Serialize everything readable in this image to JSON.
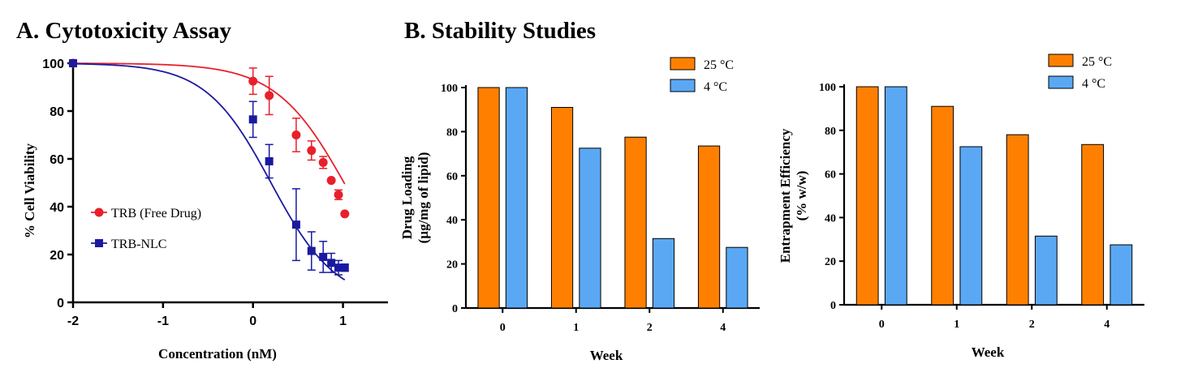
{
  "figure": {
    "panel_a_title": "A. Cytotoxicity Assay",
    "panel_b_title": "B. Stability Studies"
  },
  "chart_data": [
    {
      "type": "scatter",
      "title": "A. Cytotoxicity Assay",
      "xlabel": "Concentration (nM)",
      "ylabel": "% Cell Viability",
      "xlim": [
        -2,
        1.5
      ],
      "ylim": [
        0,
        100
      ],
      "xticks": [
        "-2",
        "-1",
        "0",
        "1"
      ],
      "xtick_values": [
        -2,
        -1,
        0,
        1
      ],
      "yticks": [
        "0",
        "20",
        "40",
        "60",
        "80",
        "100"
      ],
      "ytick_values": [
        0,
        20,
        40,
        60,
        80,
        100
      ],
      "legend_position": "middle-left",
      "series": [
        {
          "name": "TRB (Free Drug)",
          "color": "#e8202a",
          "marker": "circle",
          "x": [
            -2,
            0,
            0.18,
            0.48,
            0.65,
            0.78,
            0.87,
            0.95,
            1.02
          ],
          "y": [
            100,
            92.5,
            86.5,
            70,
            63.5,
            58.5,
            51,
            45,
            37
          ],
          "error": [
            0,
            5.5,
            8,
            7,
            4,
            2.5,
            0,
            2,
            0
          ],
          "fit": {
            "top": 100,
            "bottom": -5,
            "logEC50": 1.05,
            "hill": 1.1
          }
        },
        {
          "name": "TRB-NLC",
          "color": "#1a1aa0",
          "marker": "square",
          "x": [
            -2,
            0,
            0.18,
            0.48,
            0.65,
            0.78,
            0.87,
            0.95,
            1.02
          ],
          "y": [
            100,
            76.5,
            59,
            32.5,
            21.5,
            19,
            16.5,
            14.5,
            14.5
          ],
          "error": [
            0,
            7.5,
            7,
            15,
            8,
            6.5,
            4,
            3,
            1.5
          ],
          "fit": {
            "top": 100,
            "bottom": 0,
            "logEC50": 0.2,
            "hill": 1.2
          }
        }
      ]
    },
    {
      "type": "bar",
      "xlabel": "Week",
      "ylabel_line1": "Drug Loading",
      "ylabel_line2": "(µg/mg of lipid)",
      "categories": [
        "0",
        "1",
        "2",
        "4"
      ],
      "ylim": [
        0,
        100
      ],
      "yticks": [
        "0",
        "20",
        "40",
        "60",
        "80",
        "100"
      ],
      "ytick_values": [
        0,
        20,
        40,
        60,
        80,
        100
      ],
      "legend_position": "top-right",
      "series": [
        {
          "name": "25 °C",
          "color": "#ff8000",
          "values": [
            100,
            91,
            77.5,
            73.5
          ]
        },
        {
          "name": "4 °C",
          "color": "#5aa8f4",
          "values": [
            100,
            72.5,
            31.5,
            27.5
          ]
        }
      ]
    },
    {
      "type": "bar",
      "xlabel": "Week",
      "ylabel_line1": "Entrapment Efficiency",
      "ylabel_line2": "(% w/w)",
      "categories": [
        "0",
        "1",
        "2",
        "4"
      ],
      "ylim": [
        0,
        100
      ],
      "yticks": [
        "0",
        "20",
        "40",
        "60",
        "80",
        "100"
      ],
      "ytick_values": [
        0,
        20,
        40,
        60,
        80,
        100
      ],
      "legend_position": "top-right",
      "series": [
        {
          "name": "25 °C",
          "color": "#ff8000",
          "values": [
            100,
            91,
            78,
            73.5
          ]
        },
        {
          "name": "4 °C",
          "color": "#5aa8f4",
          "values": [
            100,
            72.5,
            31.5,
            27.5
          ]
        }
      ]
    }
  ]
}
